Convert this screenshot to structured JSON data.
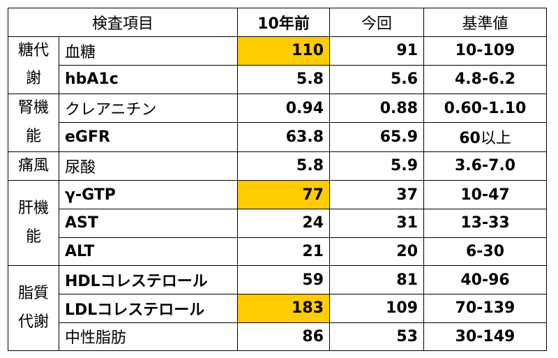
{
  "header": {
    "item": "検査項目",
    "ten_years_ago": "10年前",
    "current": "今回",
    "reference": "基準値"
  },
  "highlight_color": "#ffcc00",
  "groups": [
    {
      "category_lines": [
        "糖代",
        "謝"
      ],
      "rows": [
        {
          "item": "血糖",
          "item_bold": false,
          "ten_years_ago": "110",
          "current": "91",
          "reference": "10-109",
          "highlight": true
        },
        {
          "item": "hbA1c",
          "item_bold": true,
          "ten_years_ago": "5.8",
          "current": "5.6",
          "reference": "4.8-6.2",
          "highlight": false
        }
      ]
    },
    {
      "category_lines": [
        "腎機",
        "能"
      ],
      "rows": [
        {
          "item": "クレアニチン",
          "item_bold": false,
          "ten_years_ago": "0.94",
          "current": "0.88",
          "reference": "0.60-1.10",
          "highlight": false
        },
        {
          "item": "eGFR",
          "item_bold": true,
          "ten_years_ago": "63.8",
          "current": "65.9",
          "reference": "60以上",
          "highlight": false
        }
      ]
    },
    {
      "category_lines": [
        "痛風"
      ],
      "rows": [
        {
          "item": "尿酸",
          "item_bold": false,
          "ten_years_ago": "5.8",
          "current": "5.9",
          "reference": "3.6-7.0",
          "highlight": false
        }
      ]
    },
    {
      "category_lines": [
        "肝機",
        "能"
      ],
      "rows": [
        {
          "item": "γ-GTP",
          "item_bold": true,
          "ten_years_ago": "77",
          "current": "37",
          "reference": "10-47",
          "highlight": true
        },
        {
          "item": "AST",
          "item_bold": true,
          "ten_years_ago": "24",
          "current": "31",
          "reference": "13-33",
          "highlight": false
        },
        {
          "item": "ALT",
          "item_bold": true,
          "ten_years_ago": "21",
          "current": "20",
          "reference": "6-30",
          "highlight": false
        }
      ]
    },
    {
      "category_lines": [
        "脂質",
        "代謝"
      ],
      "rows": [
        {
          "item": "HDLコレステロール",
          "item_bold": true,
          "ten_years_ago": "59",
          "current": "81",
          "reference": "40-96",
          "highlight": false
        },
        {
          "item": "LDLコレステロール",
          "item_bold": true,
          "ten_years_ago": "183",
          "current": "109",
          "reference": "70-139",
          "highlight": true
        },
        {
          "item": "中性脂肪",
          "item_bold": false,
          "ten_years_ago": "86",
          "current": "53",
          "reference": "30-149",
          "highlight": false
        }
      ]
    }
  ]
}
